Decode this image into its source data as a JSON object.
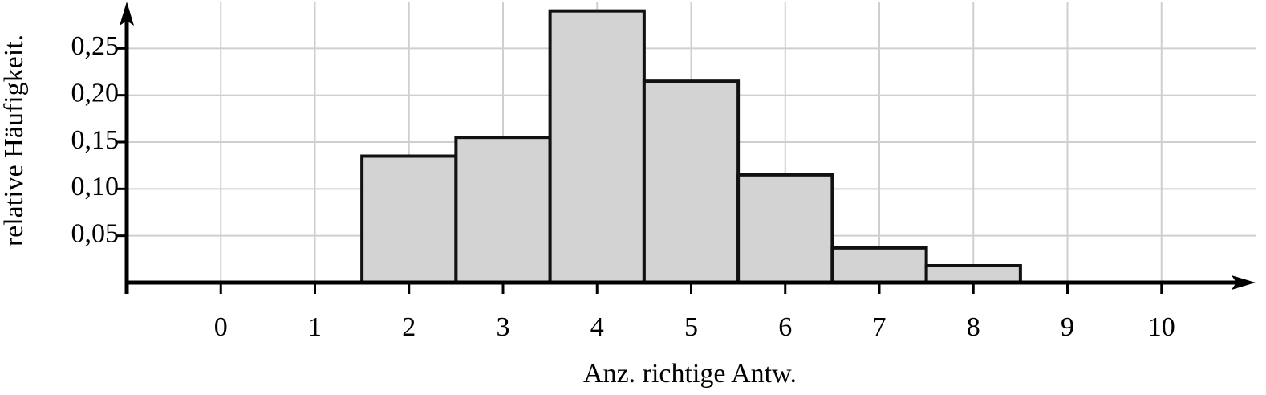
{
  "chart_data": {
    "type": "bar",
    "x_label": "Anz. richtige Antw.",
    "y_label": "relative Häufigkeit.",
    "x": [
      0,
      1,
      2,
      3,
      4,
      5,
      6,
      7,
      8,
      9,
      10
    ],
    "values": [
      0,
      0,
      0.135,
      0.155,
      0.29,
      0.215,
      0.115,
      0.037,
      0.018,
      0,
      0
    ],
    "color": "#d3d3d3",
    "xlim": [
      -1,
      11
    ],
    "xticks": [
      0,
      1,
      2,
      3,
      4,
      5,
      6,
      7,
      8,
      9,
      10
    ],
    "ylim": [
      0,
      0.3
    ],
    "yticks": [
      {
        "value": 0.05,
        "label": "0,05"
      },
      {
        "value": 0.1,
        "label": "0,10"
      },
      {
        "value": 0.15,
        "label": "0,15"
      },
      {
        "value": 0.2,
        "label": "0,20"
      },
      {
        "value": 0.25,
        "label": "0,25"
      }
    ],
    "grid": true
  }
}
